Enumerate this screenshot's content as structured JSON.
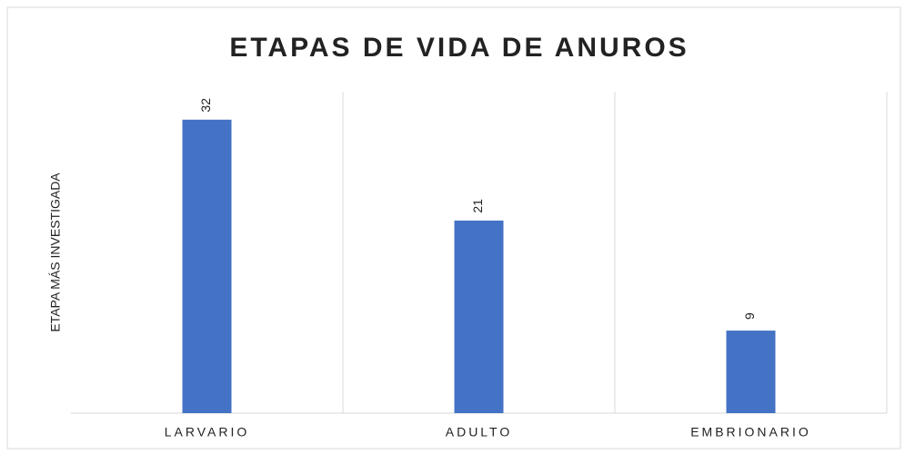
{
  "chart_data": {
    "type": "bar",
    "title": "ETAPAS DE VIDA DE ANUROS",
    "y_label": "ETAPA MÁS INVESTIGADA",
    "categories": [
      "LARVARIO",
      "ADULTO",
      "EMBRIONARIO"
    ],
    "values": [
      32,
      21,
      9
    ],
    "color": "#4472c4",
    "ylim": [
      0,
      35
    ]
  }
}
